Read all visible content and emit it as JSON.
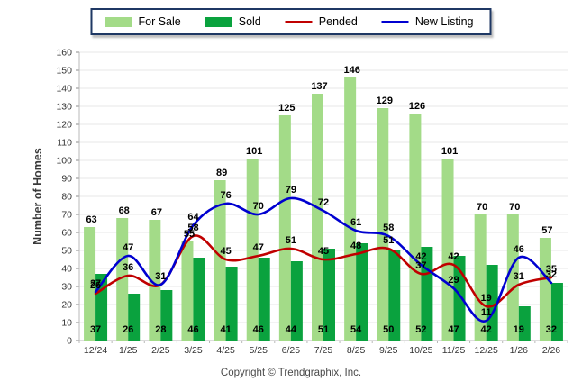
{
  "footer": {
    "copyright": "Copyright © Trendgraphix, Inc."
  },
  "chart_data": {
    "type": "combo-bar-line",
    "title": "",
    "xlabel": "",
    "ylabel": "Number of Homes",
    "ylim": [
      0,
      160
    ],
    "ytick_step": 10,
    "grid": true,
    "legend_position": "top-center",
    "categories": [
      "12/24",
      "1/25",
      "2/25",
      "3/25",
      "4/25",
      "5/25",
      "6/25",
      "7/25",
      "8/25",
      "9/25",
      "10/25",
      "11/25",
      "12/25",
      "1/26",
      "2/26"
    ],
    "series": [
      {
        "name": "For Sale",
        "type": "bar",
        "color": "#a3db88",
        "values": [
          63,
          68,
          67,
          55,
          89,
          101,
          125,
          137,
          146,
          129,
          126,
          101,
          70,
          70,
          57
        ]
      },
      {
        "name": "Sold",
        "type": "bar",
        "color": "#0aa23e",
        "values": [
          37,
          26,
          28,
          46,
          41,
          46,
          44,
          51,
          54,
          50,
          52,
          47,
          42,
          19,
          32
        ]
      },
      {
        "name": "Pended",
        "type": "line",
        "color": "#c00000",
        "values": [
          26,
          36,
          31,
          58,
          45,
          47,
          51,
          45,
          48,
          51,
          37,
          42,
          19,
          31,
          35
        ]
      },
      {
        "name": "New Listing",
        "type": "line",
        "color": "#0000d0",
        "values": [
          27,
          47,
          31,
          64,
          76,
          70,
          79,
          72,
          61,
          58,
          42,
          29,
          11,
          46,
          32
        ]
      }
    ],
    "colors": {
      "grid": "#e7e7e7",
      "axis": "#b8b8b8",
      "tick": "#8a8a8a",
      "tick_label": "#333333",
      "data_label": "#000000",
      "axis_title": "#3a3a3a",
      "legend_border": "#1f3864"
    }
  }
}
